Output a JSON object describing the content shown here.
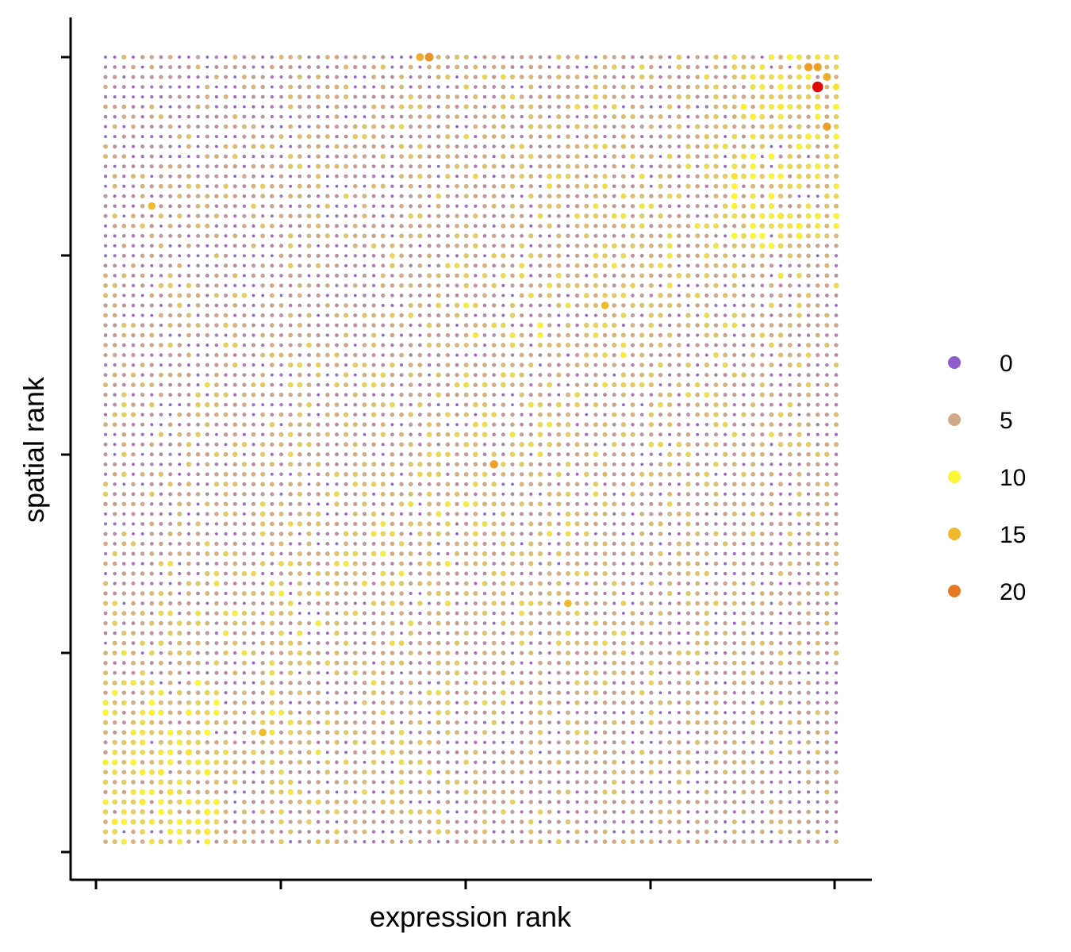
{
  "chart_data": {
    "type": "scatter",
    "xlabel": "expression rank",
    "ylabel": "spatial rank",
    "grid": false,
    "x_ticks": 5,
    "y_ticks": 5,
    "x_tick_labels": [
      "",
      "",
      "",
      "",
      ""
    ],
    "y_tick_labels": [
      "",
      "",
      "",
      "",
      ""
    ],
    "xlim": [
      0,
      80
    ],
    "ylim": [
      0,
      80
    ],
    "point_grid": {
      "columns": 80,
      "rows": 80
    },
    "color_scale": {
      "breaks": [
        0,
        5,
        10,
        15,
        20,
        25
      ],
      "colors": [
        "#8e5ccf",
        "#cfa98a",
        "#fbf637",
        "#f0ba2e",
        "#e57a23",
        "#e00a0a"
      ]
    },
    "legend": {
      "position": "right",
      "entries": [
        {
          "label": "0",
          "value": 0,
          "color": "#8e5ccf"
        },
        {
          "label": "5",
          "value": 5,
          "color": "#cfa98a"
        },
        {
          "label": "10",
          "value": 10,
          "color": "#fbf637"
        },
        {
          "label": "15",
          "value": 15,
          "color": "#f0ba2e"
        },
        {
          "label": "20",
          "value": 20,
          "color": "#e57a23"
        }
      ]
    },
    "highlight_points": [
      {
        "x": 78,
        "y": 77,
        "value": 25
      },
      {
        "x": 77,
        "y": 79,
        "value": 17
      },
      {
        "x": 78,
        "y": 79,
        "value": 17
      },
      {
        "x": 79,
        "y": 78,
        "value": 16
      },
      {
        "x": 79,
        "y": 73,
        "value": 17
      },
      {
        "x": 36,
        "y": 80,
        "value": 18
      },
      {
        "x": 35,
        "y": 80,
        "value": 16
      },
      {
        "x": 43,
        "y": 39,
        "value": 17
      },
      {
        "x": 18,
        "y": 12,
        "value": 15
      },
      {
        "x": 51,
        "y": 25,
        "value": 15
      },
      {
        "x": 6,
        "y": 65,
        "value": 15
      },
      {
        "x": 55,
        "y": 55,
        "value": 15
      }
    ]
  }
}
